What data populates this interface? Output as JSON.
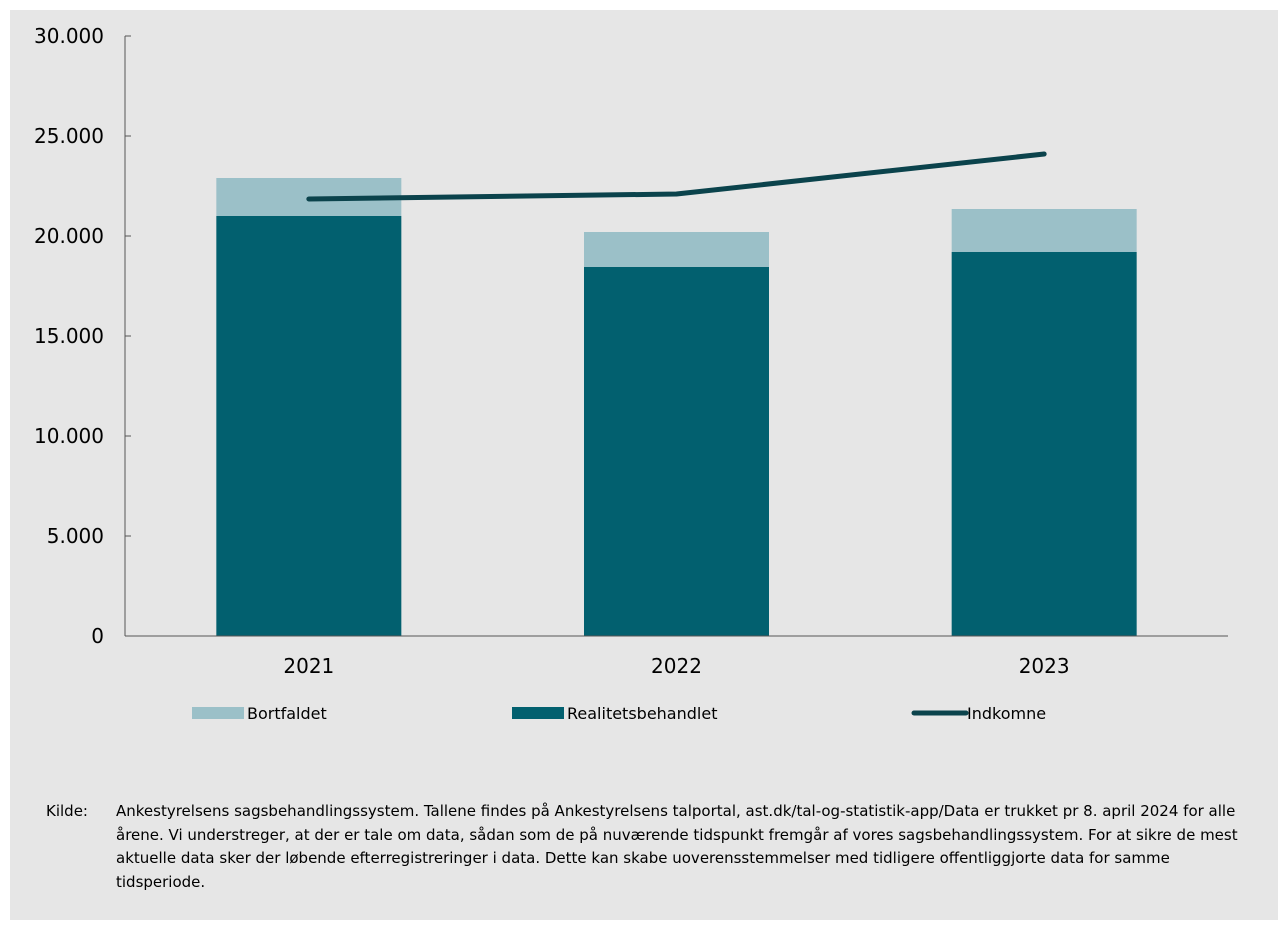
{
  "chart_data": {
    "type": "bar",
    "stacked": true,
    "categories": [
      "2021",
      "2022",
      "2023"
    ],
    "series": [
      {
        "name": "Realitetsbehandlet",
        "kind": "bar",
        "color": "#02606f",
        "values": [
          21000,
          18450,
          19200
        ]
      },
      {
        "name": "Bortfaldet",
        "kind": "bar",
        "color": "#9bc0c8",
        "values": [
          1900,
          1750,
          2150
        ]
      },
      {
        "name": "Indkomne",
        "kind": "line",
        "color": "#0b434c",
        "values": [
          21850,
          22100,
          24100
        ]
      }
    ],
    "ylim": [
      0,
      30000
    ],
    "yticks": [
      0,
      5000,
      10000,
      15000,
      20000,
      25000,
      30000
    ],
    "ytick_labels": [
      "0",
      "5.000",
      "10.000",
      "15.000",
      "20.000",
      "25.000",
      "30.000"
    ],
    "legend_order": [
      "Bortfaldet",
      "Realitetsbehandlet",
      "Indkomne"
    ],
    "legend_position": "bottom",
    "grid": false,
    "background": "#e6e6e6"
  },
  "source": {
    "label": "Kilde:",
    "text": "Ankestyrelsens sagsbehandlingssystem. Tallene findes på Ankestyrelsens talportal, ast.dk/tal-og-statistik-app/Data er trukket pr 8. april 2024 for alle årene. Vi understreger, at der er tale om data, sådan som de på nuværende tidspunkt fremgår af vores sagsbehandlingssystem. For at sikre de mest aktuelle data sker der løbende efterregistreringer i data. Dette kan skabe uoverensstemmelser med tidligere offentliggjorte data for samme tidsperiode."
  }
}
